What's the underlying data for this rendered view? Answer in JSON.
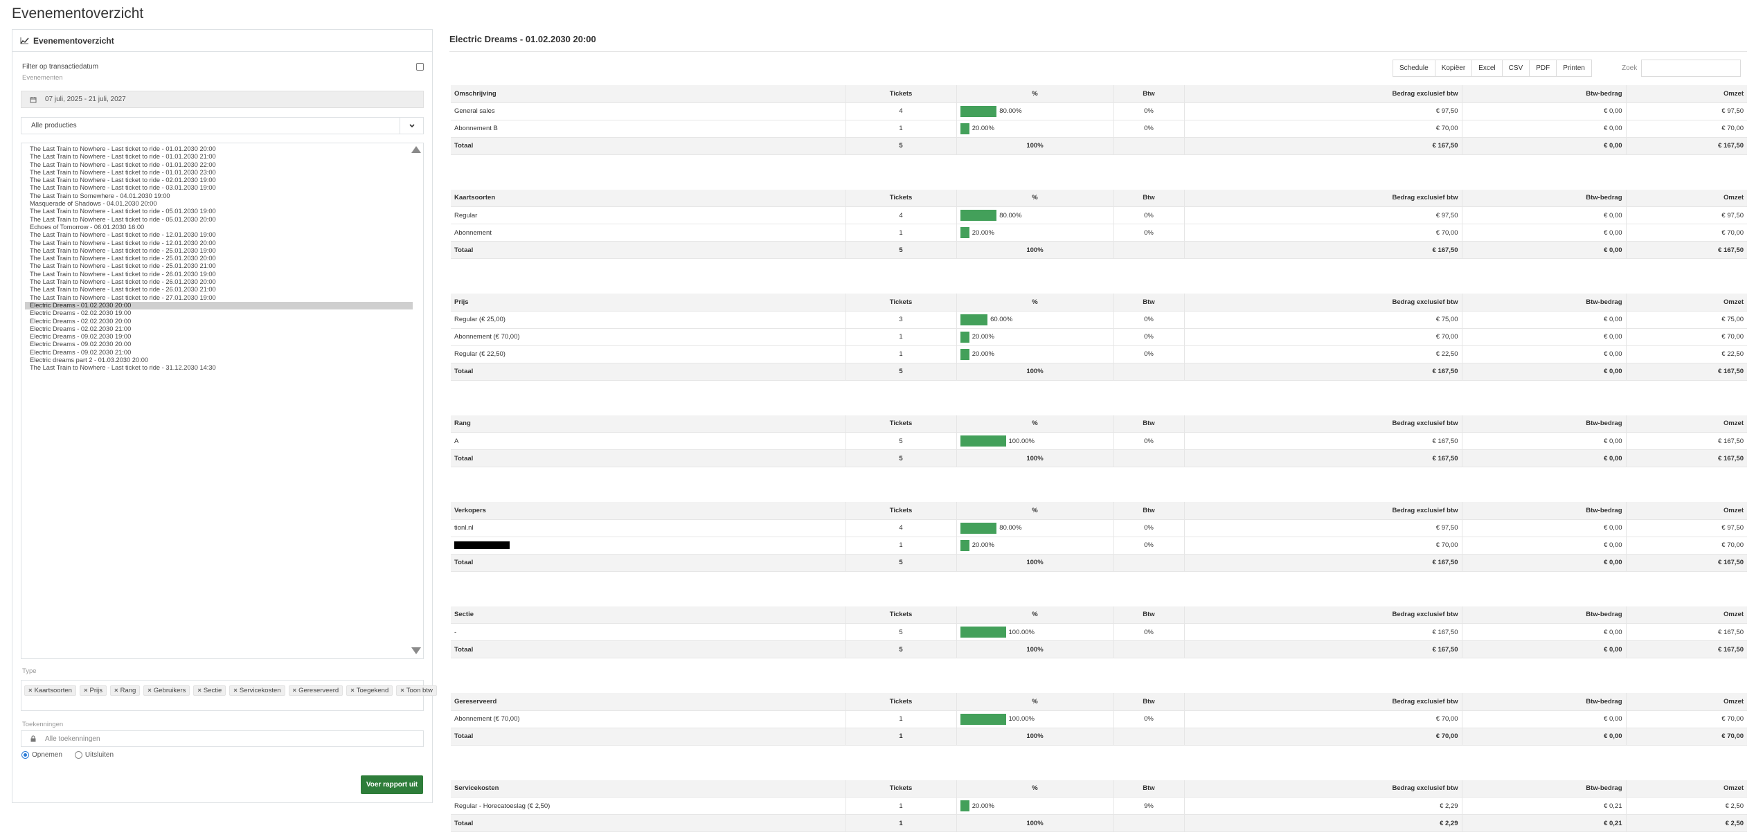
{
  "page_title": "Evenementoverzicht",
  "left": {
    "header": "Evenementoverzicht",
    "filter_label": "Filter op transactiedatum",
    "events_label": "Evenementen",
    "date_range": "07 juli, 2025 - 21 juli, 2027",
    "productions_select": "Alle producties",
    "events": [
      "The Last Train to Nowhere - Last ticket to ride - 01.01.2030 20:00",
      "The Last Train to Nowhere - Last ticket to ride - 01.01.2030 21:00",
      "The Last Train to Nowhere - Last ticket to ride - 01.01.2030 22:00",
      "The Last Train to Nowhere - Last ticket to ride - 01.01.2030 23:00",
      "The Last Train to Nowhere - Last ticket to ride - 02.01.2030 19:00",
      "The Last Train to Nowhere - Last ticket to ride - 03.01.2030 19:00",
      "The Last Train to Somewhere - 04.01.2030 19:00",
      "Masquerade of Shadows - 04.01.2030 20:00",
      "The Last Train to Nowhere - Last ticket to ride - 05.01.2030 19:00",
      "The Last Train to Nowhere - Last ticket to ride - 05.01.2030 20:00",
      "Echoes of Tomorrow - 06.01.2030 16:00",
      "The Last Train to Nowhere - Last ticket to ride - 12.01.2030 19:00",
      "The Last Train to Nowhere - Last ticket to ride - 12.01.2030 20:00",
      "The Last Train to Nowhere - Last ticket to ride - 25.01.2030 19:00",
      "The Last Train to Nowhere - Last ticket to ride - 25.01.2030 20:00",
      "The Last Train to Nowhere - Last ticket to ride - 25.01.2030 21:00",
      "The Last Train to Nowhere - Last ticket to ride - 26.01.2030 19:00",
      "The Last Train to Nowhere - Last ticket to ride - 26.01.2030 20:00",
      "The Last Train to Nowhere - Last ticket to ride - 26.01.2030 21:00",
      "The Last Train to Nowhere - Last ticket to ride - 27.01.2030 19:00",
      "Electric Dreams - 01.02.2030 20:00",
      "Electric Dreams - 02.02.2030 19:00",
      "Electric Dreams - 02.02.2030 20:00",
      "Electric Dreams - 02.02.2030 21:00",
      "Electric Dreams - 09.02.2030 19:00",
      "Electric Dreams - 09.02.2030 20:00",
      "Electric Dreams - 09.02.2030 21:00",
      "Electric dreams part 2 - 01.03.2030 20:00",
      "The Last Train to Nowhere - Last ticket to ride - 31.12.2030 14:30"
    ],
    "selected_event_index": 20,
    "type_label": "Type",
    "types": [
      "Kaartsoorten",
      "Prijs",
      "Rang",
      "Gebruikers",
      "Sectie",
      "Servicekosten",
      "Gereserveerd",
      "Toegekend",
      "Toon btw"
    ],
    "assign_label": "Toekenningen",
    "assign_placeholder": "Alle toekenningen",
    "radio_include": "Opnemen",
    "radio_exclude": "Uitsluiten",
    "run_button": "Voer rapport uit"
  },
  "right": {
    "title": "Electric Dreams - 01.02.2030 20:00",
    "toolbar": [
      "Schedule",
      "Kopiëer",
      "Excel",
      "CSV",
      "PDF",
      "Printen"
    ],
    "search_label": "Zoek",
    "columns": [
      "Tickets",
      "%",
      "Btw",
      "Bedrag exclusief btw",
      "Btw-bedrag",
      "Omzet"
    ],
    "bar_color": "#43a05a",
    "tables": [
      {
        "header": "Omschrijving",
        "rows": [
          {
            "label": "General sales",
            "tickets": "4",
            "pct": "80.00%",
            "pct_value": 80,
            "btw": "0%",
            "excl": "€ 97,50",
            "btw_amount": "€ 0,00",
            "omzet": "€ 97,50"
          },
          {
            "label": "Abonnement B",
            "tickets": "1",
            "pct": "20.00%",
            "pct_value": 20,
            "btw": "0%",
            "excl": "€ 70,00",
            "btw_amount": "€ 0,00",
            "omzet": "€ 70,00"
          }
        ],
        "total": {
          "label": "Totaal",
          "tickets": "5",
          "pct": "100%",
          "excl": "€ 167,50",
          "btw_amount": "€ 0,00",
          "omzet": "€ 167,50"
        }
      },
      {
        "header": "Kaartsoorten",
        "rows": [
          {
            "label": "Regular",
            "tickets": "4",
            "pct": "80.00%",
            "pct_value": 80,
            "btw": "0%",
            "excl": "€ 97,50",
            "btw_amount": "€ 0,00",
            "omzet": "€ 97,50"
          },
          {
            "label": "Abonnement",
            "tickets": "1",
            "pct": "20.00%",
            "pct_value": 20,
            "btw": "0%",
            "excl": "€ 70,00",
            "btw_amount": "€ 0,00",
            "omzet": "€ 70,00"
          }
        ],
        "total": {
          "label": "Totaal",
          "tickets": "5",
          "pct": "100%",
          "excl": "€ 167,50",
          "btw_amount": "€ 0,00",
          "omzet": "€ 167,50"
        }
      },
      {
        "header": "Prijs",
        "rows": [
          {
            "label": "Regular (€ 25,00)",
            "tickets": "3",
            "pct": "60.00%",
            "pct_value": 60,
            "btw": "0%",
            "excl": "€ 75,00",
            "btw_amount": "€ 0,00",
            "omzet": "€ 75,00"
          },
          {
            "label": "Abonnement (€ 70,00)",
            "tickets": "1",
            "pct": "20.00%",
            "pct_value": 20,
            "btw": "0%",
            "excl": "€ 70,00",
            "btw_amount": "€ 0,00",
            "omzet": "€ 70,00"
          },
          {
            "label": "Regular (€ 22,50)",
            "tickets": "1",
            "pct": "20.00%",
            "pct_value": 20,
            "btw": "0%",
            "excl": "€ 22,50",
            "btw_amount": "€ 0,00",
            "omzet": "€ 22,50"
          }
        ],
        "total": {
          "label": "Totaal",
          "tickets": "5",
          "pct": "100%",
          "excl": "€ 167,50",
          "btw_amount": "€ 0,00",
          "omzet": "€ 167,50"
        }
      },
      {
        "header": "Rang",
        "rows": [
          {
            "label": "A",
            "tickets": "5",
            "pct": "100.00%",
            "pct_value": 100,
            "btw": "0%",
            "excl": "€ 167,50",
            "btw_amount": "€ 0,00",
            "omzet": "€ 167,50"
          }
        ],
        "total": {
          "label": "Totaal",
          "tickets": "5",
          "pct": "100%",
          "excl": "€ 167,50",
          "btw_amount": "€ 0,00",
          "omzet": "€ 167,50"
        }
      },
      {
        "header": "Verkopers",
        "rows": [
          {
            "label": "tionl.nl",
            "tickets": "4",
            "pct": "80.00%",
            "pct_value": 80,
            "btw": "0%",
            "excl": "€ 97,50",
            "btw_amount": "€ 0,00",
            "omzet": "€ 97,50"
          },
          {
            "label": "",
            "redacted": true,
            "tickets": "1",
            "pct": "20.00%",
            "pct_value": 20,
            "btw": "0%",
            "excl": "€ 70,00",
            "btw_amount": "€ 0,00",
            "omzet": "€ 70,00"
          }
        ],
        "total": {
          "label": "Totaal",
          "tickets": "5",
          "pct": "100%",
          "excl": "€ 167,50",
          "btw_amount": "€ 0,00",
          "omzet": "€ 167,50"
        }
      },
      {
        "header": "Sectie",
        "rows": [
          {
            "label": "-",
            "tickets": "5",
            "pct": "100.00%",
            "pct_value": 100,
            "btw": "0%",
            "excl": "€ 167,50",
            "btw_amount": "€ 0,00",
            "omzet": "€ 167,50"
          }
        ],
        "total": {
          "label": "Totaal",
          "tickets": "5",
          "pct": "100%",
          "excl": "€ 167,50",
          "btw_amount": "€ 0,00",
          "omzet": "€ 167,50"
        }
      },
      {
        "header": "Gereserveerd",
        "rows": [
          {
            "label": "Abonnement (€ 70,00)",
            "tickets": "1",
            "pct": "100.00%",
            "pct_value": 100,
            "btw": "0%",
            "excl": "€ 70,00",
            "btw_amount": "€ 0,00",
            "omzet": "€ 70,00"
          }
        ],
        "total": {
          "label": "Totaal",
          "tickets": "1",
          "pct": "100%",
          "excl": "€ 70,00",
          "btw_amount": "€ 0,00",
          "omzet": "€ 70,00"
        }
      },
      {
        "header": "Servicekosten",
        "rows": [
          {
            "label": "Regular - Horecatoeslag (€ 2,50)",
            "tickets": "1",
            "pct": "20.00%",
            "pct_value": 20,
            "btw": "9%",
            "excl": "€ 2,29",
            "btw_amount": "€ 0,21",
            "omzet": "€ 2,50"
          }
        ],
        "total": {
          "label": "Totaal",
          "tickets": "1",
          "pct": "100%",
          "excl": "€ 2,29",
          "btw_amount": "€ 0,21",
          "omzet": "€ 2,50"
        }
      }
    ]
  }
}
